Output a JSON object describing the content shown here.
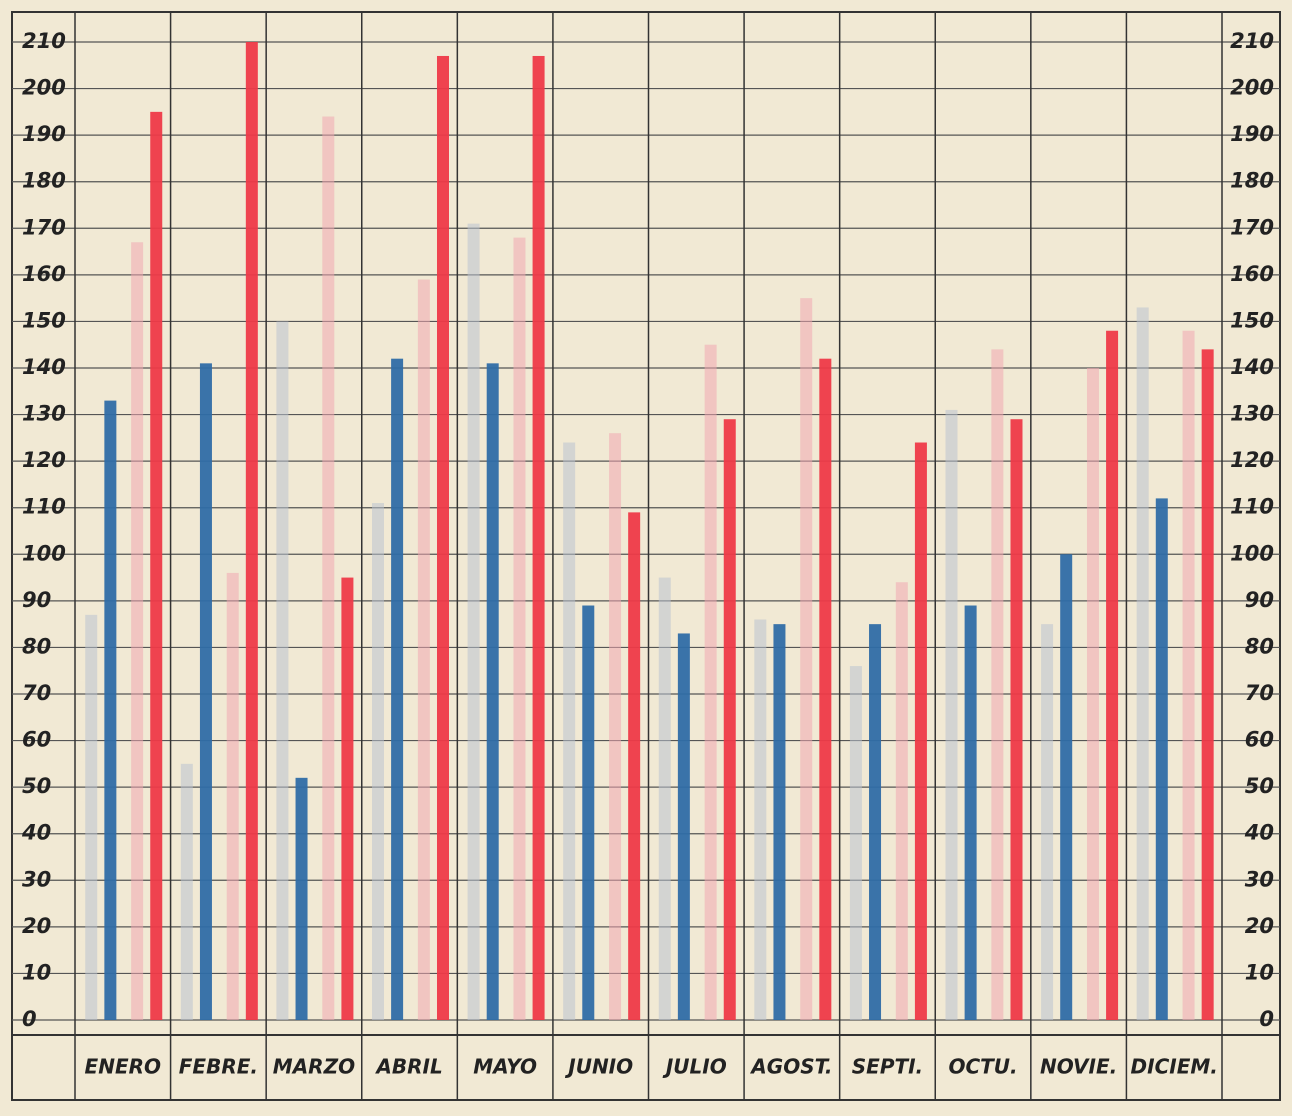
{
  "chart_data": {
    "type": "bar",
    "categories": [
      "ENERO",
      "FEBRE.",
      "MARZO",
      "ABRIL",
      "MAYO",
      "JUNIO",
      "JULIO",
      "AGOST.",
      "SEPTI.",
      "OCTU.",
      "NOVIE.",
      "DICIEM."
    ],
    "series": [
      {
        "color": "#b9c3cf",
        "values": [
          87,
          55,
          150,
          111,
          171,
          124,
          95,
          86,
          76,
          131,
          85,
          153
        ]
      },
      {
        "color": "#2f6da6",
        "values": [
          133,
          141,
          52,
          142,
          141,
          89,
          83,
          85,
          85,
          89,
          100,
          112
        ]
      },
      {
        "color": "#f0a8b0",
        "values": [
          167,
          96,
          194,
          159,
          168,
          126,
          145,
          155,
          94,
          144,
          140,
          148
        ]
      },
      {
        "color": "#ee3a48",
        "values": [
          195,
          210,
          95,
          207,
          207,
          109,
          129,
          142,
          124,
          129,
          148,
          144
        ]
      }
    ],
    "ylim": [
      0,
      210
    ],
    "yticks": [
      0,
      10,
      20,
      30,
      40,
      50,
      60,
      70,
      80,
      90,
      100,
      110,
      120,
      130,
      140,
      150,
      160,
      170,
      180,
      190,
      200,
      210
    ],
    "grid": true
  }
}
